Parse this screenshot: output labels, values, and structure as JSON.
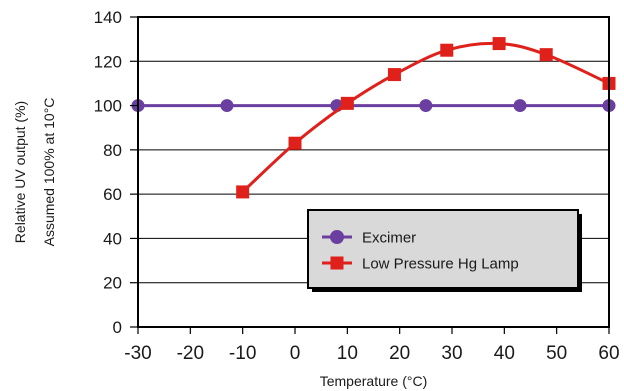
{
  "chart_data": {
    "type": "line",
    "xlabel": "Temperature (°C)",
    "ylabel_lines": [
      "Relative UV output (%)",
      "Assumed 100% at 10°C"
    ],
    "xlim": [
      -30,
      60
    ],
    "ylim": [
      0,
      140
    ],
    "x_ticks": [
      "-30",
      "-20",
      "-10",
      "0",
      "10",
      "20",
      "30",
      "40",
      "50",
      "60"
    ],
    "y_ticks": [
      "0",
      "20",
      "40",
      "60",
      "80",
      "100",
      "120",
      "140"
    ],
    "grid": "horizontal",
    "legend_position": "bottom-right",
    "series": [
      {
        "name": "Excimer",
        "color": "#6b3fa0",
        "marker": "circle",
        "smooth": false,
        "points": [
          [
            -30,
            100
          ],
          [
            -13,
            100
          ],
          [
            8,
            100
          ],
          [
            25,
            100
          ],
          [
            43,
            100
          ],
          [
            60,
            100
          ]
        ]
      },
      {
        "name": "Low Pressure Hg Lamp",
        "color": "#e0201b",
        "marker": "square",
        "smooth": true,
        "points": [
          [
            -10,
            61
          ],
          [
            0,
            83
          ],
          [
            10,
            101
          ],
          [
            19,
            114
          ],
          [
            29,
            125
          ],
          [
            39,
            128
          ],
          [
            48,
            123
          ],
          [
            60,
            110
          ]
        ]
      }
    ]
  }
}
